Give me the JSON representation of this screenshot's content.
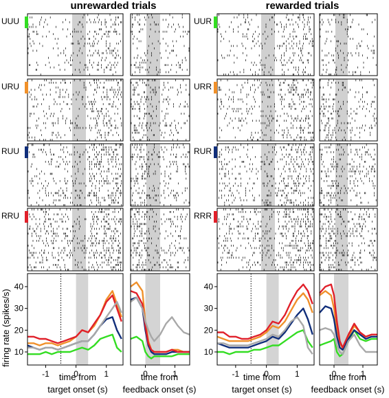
{
  "headers": {
    "left": "unrewarded trials",
    "right": "rewarded trials"
  },
  "conditions": {
    "left": [
      "UUU",
      "URU",
      "RUU",
      "RRU"
    ],
    "right": [
      "UUR",
      "URR",
      "RUR",
      "RRR"
    ],
    "colors": [
      "#33dd22",
      "#f0902a",
      "#102e7a",
      "#e0202a"
    ]
  },
  "axes": {
    "ylabel": "firing rate (spikes/s)",
    "xlabel_target": [
      "time from",
      "target onset (s)"
    ],
    "xlabel_feedback": [
      "time from",
      "feedback onset (s)"
    ],
    "target_ticks": [
      "-1",
      "0",
      "1"
    ],
    "feedback_ticks": [
      "0",
      "1"
    ],
    "y_ticks": [
      "10",
      "20",
      "30",
      "40"
    ]
  },
  "chart_data": [
    {
      "type": "line",
      "panel": "unrewarded-target",
      "xlim": [
        -1.6,
        1.55
      ],
      "ylim": [
        4,
        46
      ],
      "shaded": [
        0,
        0.4
      ],
      "dotted_x": -0.5,
      "x": [
        -1.6,
        -1.4,
        -1.2,
        -1.0,
        -0.8,
        -0.6,
        -0.4,
        -0.2,
        0.0,
        0.2,
        0.4,
        0.6,
        0.8,
        1.0,
        1.2,
        1.35,
        1.5
      ],
      "series": [
        {
          "color": "#33dd22",
          "values": [
            9,
            9,
            9,
            10,
            9,
            10,
            10,
            10,
            11,
            12,
            11,
            13,
            16,
            17,
            18,
            12,
            10
          ]
        },
        {
          "color": "#f0902a",
          "values": [
            14,
            14,
            13,
            14,
            14,
            13,
            14,
            15,
            17,
            20,
            19,
            22,
            27,
            34,
            38,
            32,
            26
          ]
        },
        {
          "color": "#102e7a",
          "values": [
            13,
            12,
            11,
            12,
            12,
            11,
            12,
            13,
            14,
            15,
            15,
            18,
            22,
            25,
            26,
            20,
            16
          ]
        },
        {
          "color": "#e0202a",
          "values": [
            17,
            17,
            16,
            16,
            15,
            14,
            15,
            16,
            17,
            20,
            19,
            23,
            27,
            33,
            36,
            30,
            24
          ]
        },
        {
          "color": "#a8a8a8",
          "values": [
            12,
            12,
            11,
            12,
            12,
            11,
            12,
            13,
            14,
            15,
            15,
            18,
            22,
            26,
            30,
            33,
            28
          ]
        }
      ]
    },
    {
      "type": "line",
      "panel": "unrewarded-feedback",
      "xlim": [
        -0.5,
        1.5
      ],
      "ylim": [
        4,
        46
      ],
      "shaded": [
        0,
        0.5
      ],
      "x": [
        -0.5,
        -0.3,
        -0.1,
        0.0,
        0.1,
        0.2,
        0.3,
        0.5,
        0.7,
        0.9,
        1.1,
        1.3,
        1.5
      ],
      "series": [
        {
          "color": "#33dd22",
          "values": [
            16,
            17,
            15,
            10,
            8,
            7,
            8,
            8,
            8,
            8,
            9,
            9,
            9
          ]
        },
        {
          "color": "#f0902a",
          "values": [
            40,
            42,
            38,
            24,
            15,
            11,
            10,
            10,
            10,
            11,
            11,
            10,
            10
          ]
        },
        {
          "color": "#102e7a",
          "values": [
            34,
            35,
            30,
            20,
            13,
            10,
            9,
            9,
            9,
            10,
            10,
            10,
            10
          ]
        },
        {
          "color": "#e0202a",
          "values": [
            38,
            37,
            32,
            22,
            14,
            11,
            10,
            10,
            10,
            11,
            10,
            10,
            10
          ]
        },
        {
          "color": "#a8a8a8",
          "values": [
            33,
            35,
            30,
            24,
            20,
            17,
            15,
            18,
            23,
            26,
            22,
            19,
            18
          ]
        }
      ]
    },
    {
      "type": "line",
      "panel": "rewarded-target",
      "xlim": [
        -1.6,
        1.55
      ],
      "ylim": [
        4,
        46
      ],
      "shaded": [
        0,
        0.4
      ],
      "dotted_x": -0.5,
      "x": [
        -1.6,
        -1.4,
        -1.2,
        -1.0,
        -0.8,
        -0.6,
        -0.4,
        -0.2,
        0.0,
        0.2,
        0.4,
        0.6,
        0.8,
        1.0,
        1.2,
        1.35,
        1.5
      ],
      "series": [
        {
          "color": "#33dd22",
          "values": [
            10,
            10,
            9,
            10,
            10,
            10,
            11,
            11,
            12,
            13,
            13,
            15,
            17,
            19,
            20,
            15,
            12
          ]
        },
        {
          "color": "#f0902a",
          "values": [
            17,
            16,
            15,
            15,
            15,
            15,
            16,
            17,
            19,
            22,
            21,
            24,
            29,
            34,
            37,
            34,
            28
          ]
        },
        {
          "color": "#102e7a",
          "values": [
            14,
            13,
            12,
            12,
            12,
            12,
            13,
            14,
            15,
            17,
            16,
            19,
            23,
            27,
            30,
            25,
            18
          ]
        },
        {
          "color": "#e0202a",
          "values": [
            19,
            19,
            17,
            17,
            16,
            16,
            17,
            18,
            20,
            24,
            23,
            27,
            33,
            38,
            41,
            38,
            32
          ]
        },
        {
          "color": "#a8a8a8",
          "values": [
            14,
            14,
            13,
            13,
            13,
            13,
            14,
            15,
            16,
            18,
            17,
            20,
            24,
            26,
            22,
            12,
            9
          ]
        }
      ]
    },
    {
      "type": "line",
      "panel": "rewarded-feedback",
      "xlim": [
        -0.5,
        1.5
      ],
      "ylim": [
        4,
        46
      ],
      "shaded": [
        0,
        0.5
      ],
      "x": [
        -0.5,
        -0.3,
        -0.1,
        0.0,
        0.1,
        0.2,
        0.3,
        0.5,
        0.7,
        0.9,
        1.1,
        1.3,
        1.5
      ],
      "series": [
        {
          "color": "#33dd22",
          "values": [
            13,
            14,
            15,
            16,
            10,
            8,
            9,
            15,
            20,
            16,
            15,
            16,
            16
          ]
        },
        {
          "color": "#f0902a",
          "values": [
            36,
            38,
            36,
            30,
            20,
            14,
            12,
            17,
            22,
            19,
            17,
            18,
            18
          ]
        },
        {
          "color": "#102e7a",
          "values": [
            28,
            31,
            30,
            25,
            17,
            12,
            11,
            16,
            20,
            18,
            16,
            17,
            17
          ]
        },
        {
          "color": "#e0202a",
          "values": [
            37,
            40,
            41,
            36,
            24,
            15,
            12,
            18,
            23,
            19,
            17,
            18,
            18
          ]
        },
        {
          "color": "#a8a8a8",
          "values": [
            20,
            21,
            20,
            18,
            13,
            10,
            9,
            15,
            18,
            13,
            10,
            10,
            10
          ]
        }
      ]
    }
  ]
}
